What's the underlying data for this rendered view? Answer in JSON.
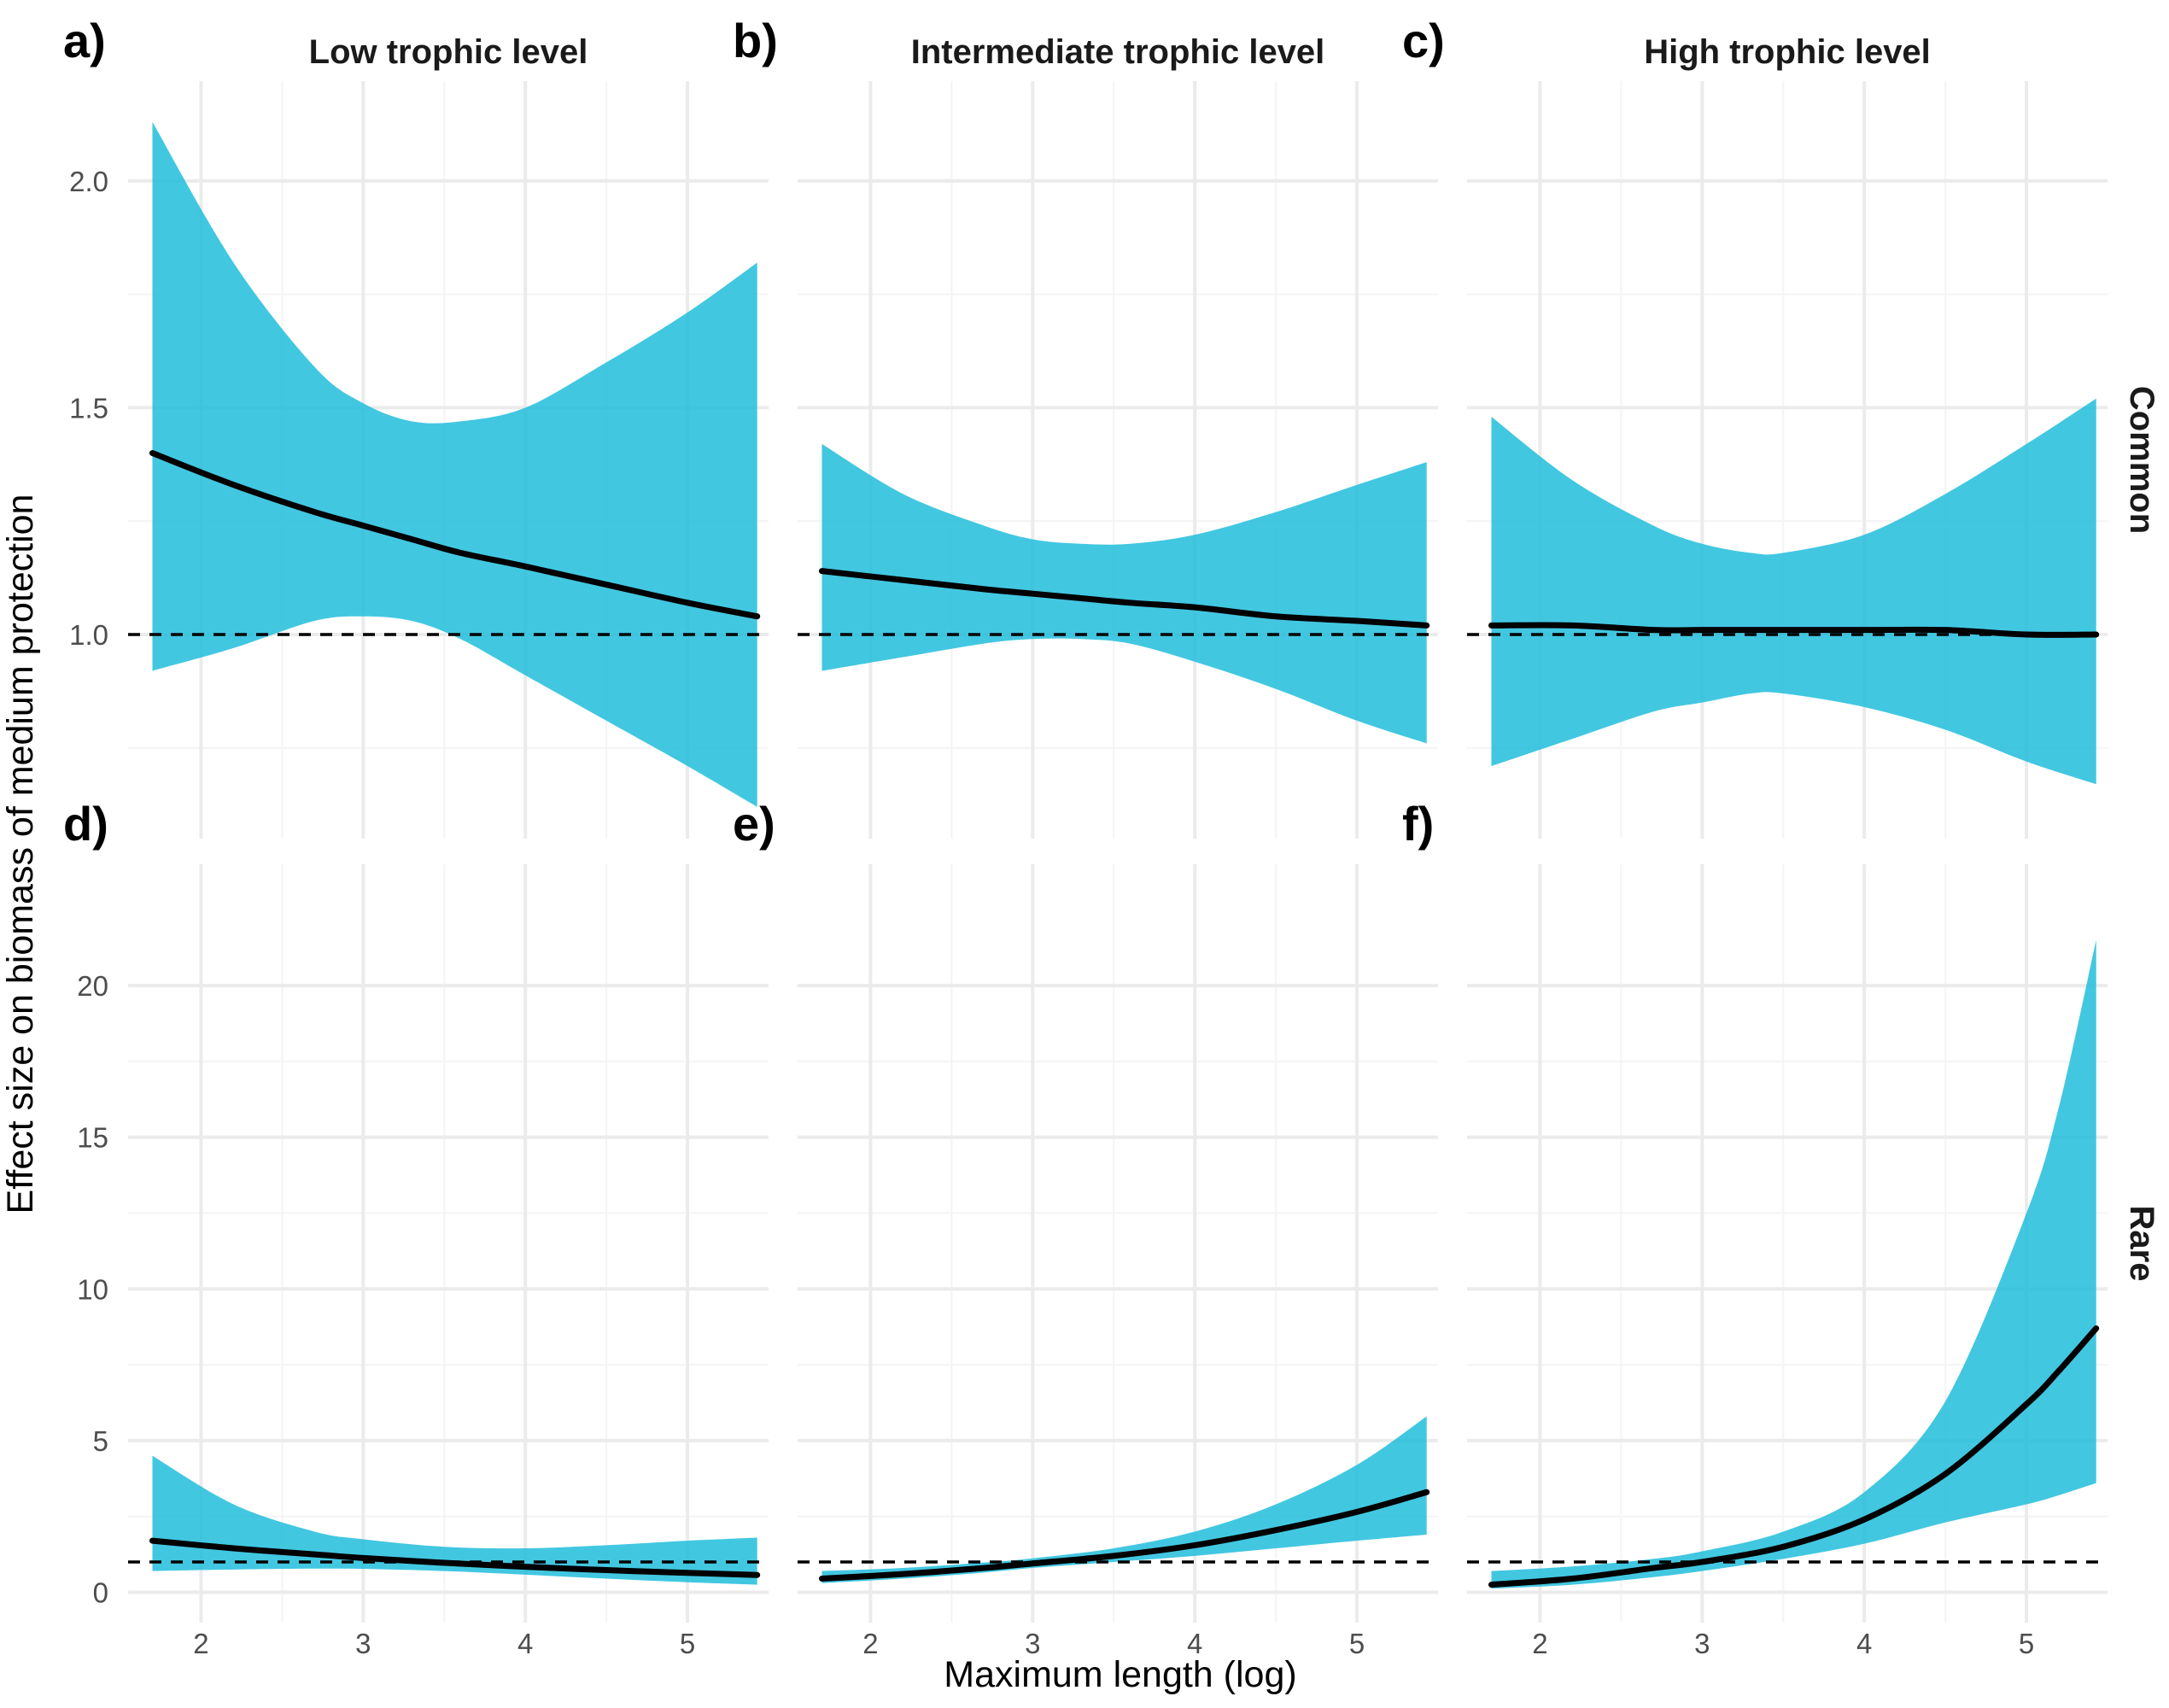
{
  "colors": {
    "ribbon": "#23BEDC",
    "line": "#000000",
    "reference": "#000000",
    "grid_major": "#EBEBEB",
    "grid_minor": "#F4F4F4"
  },
  "chart_data": {
    "type": "line",
    "style": "faceted 2x3 grid, fitted line with shaded confidence ribbon and dashed reference line at y = 1",
    "xlabel": "Maximum length (log)",
    "ylabel": "Effect size on biomass of medium protection",
    "columns": [
      "Low trophic level",
      "Intermediate trophic level",
      "High trophic level"
    ],
    "rows": [
      "Common",
      "Rare"
    ],
    "xlim": [
      1.55,
      5.5
    ],
    "x_ticks": [
      "2",
      "3",
      "4",
      "5"
    ],
    "x_tick_values": [
      2,
      3,
      4,
      5
    ],
    "row_scales": [
      {
        "row": "Common",
        "ylim": [
          0.55,
          2.22
        ],
        "y_ticks": [
          "1.0",
          "1.5",
          "2.0"
        ],
        "y_tick_values": [
          1.0,
          1.5,
          2.0
        ],
        "y_minor": [
          0.75,
          1.25,
          1.75
        ]
      },
      {
        "row": "Rare",
        "ylim": [
          -1.0,
          24.0
        ],
        "y_ticks": [
          "0",
          "5",
          "10",
          "15",
          "20"
        ],
        "y_tick_values": [
          0,
          5,
          10,
          15,
          20
        ],
        "y_minor": [
          2.5,
          7.5,
          12.5,
          17.5
        ]
      }
    ],
    "reference_line": 1,
    "grid": true,
    "legend": "none",
    "panels": [
      {
        "label": "a)",
        "row": "Common",
        "column": "Low trophic level",
        "x": [
          1.7,
          2.2,
          2.7,
          3.0,
          3.3,
          3.6,
          4.0,
          4.5,
          5.0,
          5.43
        ],
        "fit": [
          1.4,
          1.33,
          1.27,
          1.24,
          1.21,
          1.18,
          1.15,
          1.11,
          1.07,
          1.04
        ],
        "lower": [
          0.92,
          0.97,
          1.03,
          1.04,
          1.03,
          0.99,
          0.91,
          0.81,
          0.71,
          0.62
        ],
        "upper": [
          2.13,
          1.82,
          1.59,
          1.51,
          1.47,
          1.47,
          1.5,
          1.6,
          1.71,
          1.82
        ]
      },
      {
        "label": "b)",
        "row": "Common",
        "column": "Intermediate trophic level",
        "x": [
          1.7,
          2.2,
          2.7,
          3.0,
          3.3,
          3.6,
          4.0,
          4.5,
          5.0,
          5.43
        ],
        "fit": [
          1.14,
          1.12,
          1.1,
          1.09,
          1.08,
          1.07,
          1.06,
          1.04,
          1.03,
          1.02
        ],
        "lower": [
          0.92,
          0.95,
          0.98,
          0.99,
          0.99,
          0.98,
          0.94,
          0.88,
          0.81,
          0.76
        ],
        "upper": [
          1.42,
          1.31,
          1.24,
          1.21,
          1.2,
          1.2,
          1.22,
          1.27,
          1.33,
          1.38
        ]
      },
      {
        "label": "c)",
        "row": "Common",
        "column": "High trophic level",
        "x": [
          1.7,
          2.2,
          2.7,
          3.0,
          3.3,
          3.5,
          4.0,
          4.5,
          5.0,
          5.43
        ],
        "fit": [
          1.02,
          1.02,
          1.01,
          1.01,
          1.01,
          1.01,
          1.01,
          1.01,
          1.0,
          1.0
        ],
        "lower": [
          0.71,
          0.77,
          0.83,
          0.85,
          0.87,
          0.87,
          0.84,
          0.79,
          0.72,
          0.67
        ],
        "upper": [
          1.48,
          1.34,
          1.24,
          1.2,
          1.18,
          1.18,
          1.22,
          1.31,
          1.42,
          1.52
        ]
      },
      {
        "label": "d)",
        "row": "Rare",
        "column": "Low trophic level",
        "x": [
          1.7,
          2.2,
          2.7,
          3.0,
          3.5,
          4.0,
          4.5,
          5.0,
          5.43
        ],
        "fit": [
          1.7,
          1.45,
          1.25,
          1.13,
          0.97,
          0.84,
          0.73,
          0.64,
          0.57
        ],
        "lower": [
          0.7,
          0.75,
          0.78,
          0.77,
          0.7,
          0.58,
          0.45,
          0.33,
          0.25
        ],
        "upper": [
          4.5,
          2.9,
          2.0,
          1.75,
          1.5,
          1.45,
          1.55,
          1.7,
          1.8
        ]
      },
      {
        "label": "e)",
        "row": "Rare",
        "column": "Intermediate trophic level",
        "x": [
          1.7,
          2.2,
          2.7,
          3.0,
          3.5,
          4.0,
          4.5,
          5.0,
          5.43
        ],
        "fit": [
          0.45,
          0.6,
          0.8,
          0.95,
          1.2,
          1.55,
          2.05,
          2.65,
          3.3
        ],
        "lower": [
          0.3,
          0.45,
          0.65,
          0.8,
          1.0,
          1.2,
          1.45,
          1.7,
          1.9
        ],
        "upper": [
          0.7,
          0.8,
          0.98,
          1.12,
          1.45,
          2.0,
          2.9,
          4.2,
          5.8
        ]
      },
      {
        "label": "f)",
        "row": "Rare",
        "column": "High trophic level",
        "x": [
          1.7,
          2.2,
          2.7,
          3.0,
          3.5,
          4.0,
          4.5,
          5.0,
          5.2,
          5.43
        ],
        "fit": [
          0.25,
          0.45,
          0.8,
          1.0,
          1.5,
          2.4,
          3.9,
          6.2,
          7.3,
          8.7
        ],
        "lower": [
          0.12,
          0.25,
          0.5,
          0.7,
          1.1,
          1.6,
          2.3,
          2.9,
          3.2,
          3.6
        ],
        "upper": [
          0.7,
          0.85,
          1.1,
          1.35,
          2.0,
          3.3,
          6.3,
          12.5,
          16.0,
          21.5
        ]
      }
    ]
  }
}
